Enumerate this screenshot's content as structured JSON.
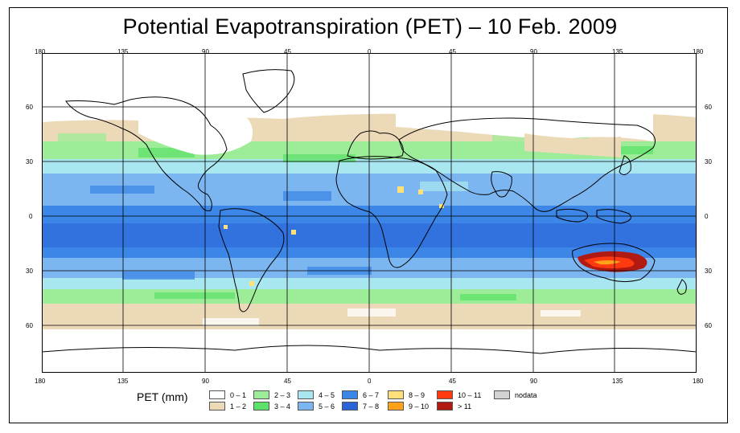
{
  "title": "Potential Evapotranspiration (PET) – 10 Feb. 2009",
  "top_lon_ticks": [
    "180",
    "135",
    "90",
    "45",
    "0",
    "45",
    "90",
    "135",
    "180"
  ],
  "bottom_lon_ticks": [
    "180",
    "135",
    "90",
    "45",
    "0",
    "45",
    "90",
    "135",
    "180"
  ],
  "left_lat_ticks": [
    "60",
    "30",
    "0",
    "30",
    "60"
  ],
  "right_lat_ticks": [
    "60",
    "30",
    "0",
    "30",
    "60"
  ],
  "legend": {
    "title": "PET (mm)",
    "items": [
      {
        "label": "0 – 1",
        "color": "#ffffff"
      },
      {
        "label": "1 – 2",
        "color": "#ecd9b8"
      },
      {
        "label": "2 – 3",
        "color": "#9ded98"
      },
      {
        "label": "3 – 4",
        "color": "#5de16a"
      },
      {
        "label": "4 – 5",
        "color": "#a8e6f0"
      },
      {
        "label": "5 – 6",
        "color": "#7cb6f1"
      },
      {
        "label": "6 – 7",
        "color": "#3b86e6"
      },
      {
        "label": "7 – 8",
        "color": "#2a63d8"
      },
      {
        "label": "8 – 9",
        "color": "#ffe07a"
      },
      {
        "label": "9 – 10",
        "color": "#ffa21a"
      },
      {
        "label": "10 – 11",
        "color": "#ff3a10"
      },
      {
        "label": "> 11",
        "color": "#b01a12"
      },
      {
        "label": "nodata",
        "color": "#d3d3d3"
      }
    ]
  },
  "colors": {
    "grid": "#000000",
    "coast": "#000000"
  }
}
